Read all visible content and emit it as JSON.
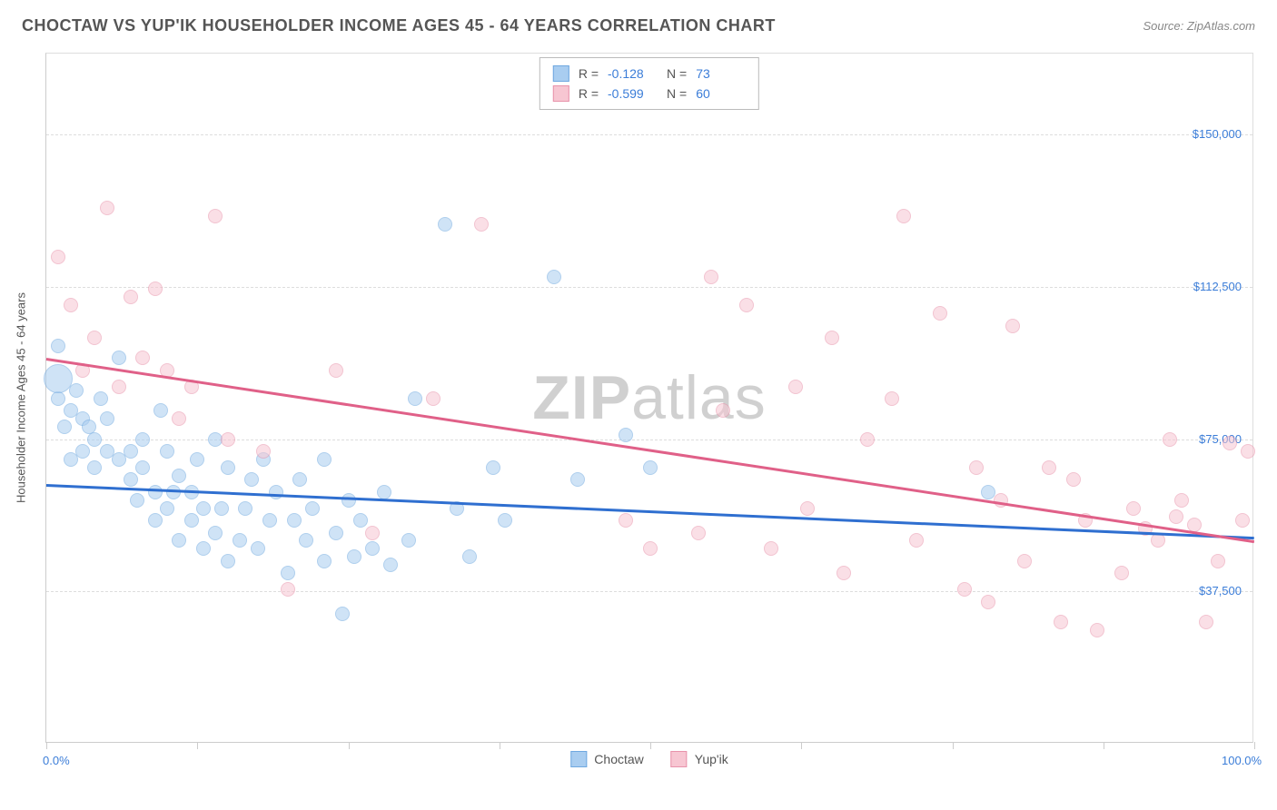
{
  "title": "CHOCTAW VS YUP'IK HOUSEHOLDER INCOME AGES 45 - 64 YEARS CORRELATION CHART",
  "source": "Source: ZipAtlas.com",
  "watermark_a": "ZIP",
  "watermark_b": "atlas",
  "y_axis_title": "Householder Income Ages 45 - 64 years",
  "chart": {
    "type": "scatter",
    "xlim": [
      0,
      100
    ],
    "ylim": [
      0,
      170000
    ],
    "x_ticks": [
      0,
      12.5,
      25,
      37.5,
      50,
      62.5,
      75,
      87.5,
      100
    ],
    "x_tick_labels": {
      "0": "0.0%",
      "100": "100.0%"
    },
    "y_gridlines": [
      37500,
      75000,
      112500,
      150000
    ],
    "y_labels": [
      "$37,500",
      "$75,000",
      "$112,500",
      "$150,000"
    ],
    "background_color": "#ffffff",
    "grid_color": "#dddddd",
    "label_color": "#3b7dd8",
    "marker_radius": 8,
    "marker_opacity": 0.55,
    "series": [
      {
        "name": "Choctaw",
        "color_fill": "#a9cdf0",
        "color_stroke": "#6fa8e0",
        "trend_color": "#2f6fd0",
        "R": "-0.128",
        "N": "73",
        "trend": {
          "x1": 0,
          "y1": 64000,
          "x2": 100,
          "y2": 51000
        },
        "points": [
          [
            1,
            98000
          ],
          [
            1,
            85000
          ],
          [
            1.5,
            78000
          ],
          [
            2,
            82000
          ],
          [
            2,
            70000
          ],
          [
            1,
            90000,
            16
          ],
          [
            2.5,
            87000
          ],
          [
            3,
            80000
          ],
          [
            3,
            72000
          ],
          [
            3.5,
            78000
          ],
          [
            4,
            68000
          ],
          [
            4,
            75000
          ],
          [
            4.5,
            85000
          ],
          [
            5,
            72000
          ],
          [
            5,
            80000
          ],
          [
            6,
            70000
          ],
          [
            6,
            95000
          ],
          [
            7,
            65000
          ],
          [
            7,
            72000
          ],
          [
            7.5,
            60000
          ],
          [
            8,
            68000
          ],
          [
            8,
            75000
          ],
          [
            9,
            62000
          ],
          [
            9,
            55000
          ],
          [
            9.5,
            82000
          ],
          [
            10,
            58000
          ],
          [
            10,
            72000
          ],
          [
            10.5,
            62000
          ],
          [
            11,
            50000
          ],
          [
            11,
            66000
          ],
          [
            12,
            55000
          ],
          [
            12,
            62000
          ],
          [
            12.5,
            70000
          ],
          [
            13,
            48000
          ],
          [
            13,
            58000
          ],
          [
            14,
            52000
          ],
          [
            14,
            75000
          ],
          [
            14.5,
            58000
          ],
          [
            15,
            45000
          ],
          [
            15,
            68000
          ],
          [
            16,
            50000
          ],
          [
            16.5,
            58000
          ],
          [
            17,
            65000
          ],
          [
            17.5,
            48000
          ],
          [
            18,
            70000
          ],
          [
            18.5,
            55000
          ],
          [
            19,
            62000
          ],
          [
            20,
            42000
          ],
          [
            20.5,
            55000
          ],
          [
            21,
            65000
          ],
          [
            21.5,
            50000
          ],
          [
            22,
            58000
          ],
          [
            23,
            45000
          ],
          [
            23,
            70000
          ],
          [
            24,
            52000
          ],
          [
            24.5,
            32000
          ],
          [
            25,
            60000
          ],
          [
            25.5,
            46000
          ],
          [
            26,
            55000
          ],
          [
            27,
            48000
          ],
          [
            28,
            62000
          ],
          [
            28.5,
            44000
          ],
          [
            30,
            50000
          ],
          [
            30.5,
            85000
          ],
          [
            33,
            128000
          ],
          [
            34,
            58000
          ],
          [
            35,
            46000
          ],
          [
            37,
            68000
          ],
          [
            38,
            55000
          ],
          [
            42,
            115000
          ],
          [
            44,
            65000
          ],
          [
            48,
            76000
          ],
          [
            50,
            68000
          ],
          [
            78,
            62000
          ]
        ]
      },
      {
        "name": "Yup'ik",
        "color_fill": "#f7c6d2",
        "color_stroke": "#e893ab",
        "trend_color": "#e06088",
        "R": "-0.599",
        "N": "60",
        "trend": {
          "x1": 0,
          "y1": 95000,
          "x2": 100,
          "y2": 50000
        },
        "points": [
          [
            1,
            120000
          ],
          [
            2,
            108000
          ],
          [
            3,
            92000
          ],
          [
            4,
            100000
          ],
          [
            5,
            132000
          ],
          [
            6,
            88000
          ],
          [
            7,
            110000
          ],
          [
            8,
            95000
          ],
          [
            9,
            112000
          ],
          [
            10,
            92000
          ],
          [
            11,
            80000
          ],
          [
            12,
            88000
          ],
          [
            14,
            130000
          ],
          [
            15,
            75000
          ],
          [
            18,
            72000
          ],
          [
            20,
            38000
          ],
          [
            24,
            92000
          ],
          [
            27,
            52000
          ],
          [
            32,
            85000
          ],
          [
            36,
            128000
          ],
          [
            48,
            55000
          ],
          [
            50,
            48000
          ],
          [
            54,
            52000
          ],
          [
            55,
            115000
          ],
          [
            56,
            82000
          ],
          [
            58,
            108000
          ],
          [
            60,
            48000
          ],
          [
            62,
            88000
          ],
          [
            63,
            58000
          ],
          [
            65,
            100000
          ],
          [
            66,
            42000
          ],
          [
            68,
            75000
          ],
          [
            70,
            85000
          ],
          [
            71,
            130000
          ],
          [
            72,
            50000
          ],
          [
            74,
            106000
          ],
          [
            76,
            38000
          ],
          [
            77,
            68000
          ],
          [
            78,
            35000
          ],
          [
            79,
            60000
          ],
          [
            80,
            103000
          ],
          [
            81,
            45000
          ],
          [
            83,
            68000
          ],
          [
            84,
            30000
          ],
          [
            85,
            65000
          ],
          [
            86,
            55000
          ],
          [
            87,
            28000
          ],
          [
            89,
            42000
          ],
          [
            90,
            58000
          ],
          [
            91,
            53000
          ],
          [
            92,
            50000
          ],
          [
            93,
            75000
          ],
          [
            93.5,
            56000
          ],
          [
            94,
            60000
          ],
          [
            95,
            54000
          ],
          [
            96,
            30000
          ],
          [
            97,
            45000
          ],
          [
            98,
            74000
          ],
          [
            99,
            55000
          ],
          [
            99.5,
            72000
          ]
        ]
      }
    ]
  },
  "legend": {
    "s1": "Choctaw",
    "s2": "Yup'ik"
  },
  "stats_labels": {
    "r": "R =",
    "n": "N ="
  }
}
